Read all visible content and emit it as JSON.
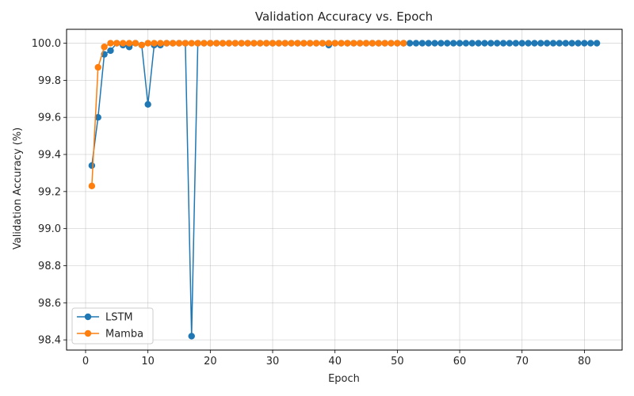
{
  "chart_data": {
    "type": "line",
    "title": "Validation Accuracy vs. Epoch",
    "xlabel": "Epoch",
    "ylabel": "Validation Accuracy (%)",
    "xlim": [
      -3.05,
      86.05
    ],
    "ylim": [
      98.345,
      100.075
    ],
    "xticks": [
      0,
      10,
      20,
      30,
      40,
      50,
      60,
      70,
      80
    ],
    "yticks": [
      98.4,
      98.6,
      98.8,
      99.0,
      99.2,
      99.4,
      99.6,
      99.8,
      100.0
    ],
    "ytick_labels": [
      "98.4",
      "98.6",
      "98.8",
      "99.0",
      "99.2",
      "99.4",
      "99.6",
      "99.8",
      "100.0"
    ],
    "grid": true,
    "legend_position": "lower-left",
    "series": [
      {
        "name": "LSTM",
        "color": "#1f77b4",
        "x": [
          1,
          2,
          3,
          4,
          5,
          6,
          7,
          8,
          9,
          10,
          11,
          12,
          13,
          14,
          15,
          16,
          17,
          18,
          19,
          20,
          21,
          22,
          23,
          24,
          25,
          26,
          27,
          28,
          29,
          30,
          31,
          32,
          33,
          34,
          35,
          36,
          37,
          38,
          39,
          40,
          41,
          42,
          43,
          44,
          45,
          46,
          47,
          48,
          49,
          50,
          51,
          52,
          53,
          54,
          55,
          56,
          57,
          58,
          59,
          60,
          61,
          62,
          63,
          64,
          65,
          66,
          67,
          68,
          69,
          70,
          71,
          72,
          73,
          74,
          75,
          76,
          77,
          78,
          79,
          80,
          81,
          82
        ],
        "values": [
          99.34,
          99.6,
          99.94,
          99.96,
          100.0,
          99.99,
          99.98,
          100.0,
          99.99,
          99.67,
          99.99,
          99.99,
          100.0,
          100.0,
          100.0,
          100.0,
          98.42,
          100.0,
          100.0,
          100.0,
          100.0,
          100.0,
          100.0,
          100.0,
          100.0,
          100.0,
          100.0,
          100.0,
          100.0,
          100.0,
          100.0,
          100.0,
          100.0,
          100.0,
          100.0,
          100.0,
          100.0,
          100.0,
          99.99,
          100.0,
          100.0,
          100.0,
          100.0,
          100.0,
          100.0,
          100.0,
          100.0,
          100.0,
          100.0,
          100.0,
          100.0,
          100.0,
          100.0,
          100.0,
          100.0,
          100.0,
          100.0,
          100.0,
          100.0,
          100.0,
          100.0,
          100.0,
          100.0,
          100.0,
          100.0,
          100.0,
          100.0,
          100.0,
          100.0,
          100.0,
          100.0,
          100.0,
          100.0,
          100.0,
          100.0,
          100.0,
          100.0,
          100.0,
          100.0,
          100.0,
          100.0,
          100.0
        ]
      },
      {
        "name": "Mamba",
        "color": "#ff7f0e",
        "x": [
          1,
          2,
          3,
          4,
          5,
          6,
          7,
          8,
          9,
          10,
          11,
          12,
          13,
          14,
          15,
          16,
          17,
          18,
          19,
          20,
          21,
          22,
          23,
          24,
          25,
          26,
          27,
          28,
          29,
          30,
          31,
          32,
          33,
          34,
          35,
          36,
          37,
          38,
          39,
          40,
          41,
          42,
          43,
          44,
          45,
          46,
          47,
          48,
          49,
          50,
          51
        ],
        "values": [
          99.23,
          99.87,
          99.98,
          100.0,
          100.0,
          100.0,
          100.0,
          100.0,
          99.99,
          100.0,
          100.0,
          100.0,
          100.0,
          100.0,
          100.0,
          100.0,
          100.0,
          100.0,
          100.0,
          100.0,
          100.0,
          100.0,
          100.0,
          100.0,
          100.0,
          100.0,
          100.0,
          100.0,
          100.0,
          100.0,
          100.0,
          100.0,
          100.0,
          100.0,
          100.0,
          100.0,
          100.0,
          100.0,
          100.0,
          100.0,
          100.0,
          100.0,
          100.0,
          100.0,
          100.0,
          100.0,
          100.0,
          100.0,
          100.0,
          100.0,
          100.0
        ]
      }
    ]
  }
}
